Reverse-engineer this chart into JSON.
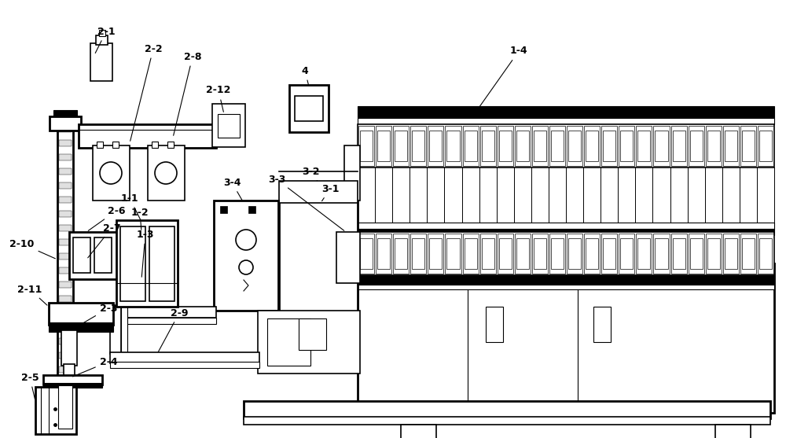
{
  "bg_color": "#ffffff",
  "fig_width": 10.0,
  "fig_height": 5.57
}
